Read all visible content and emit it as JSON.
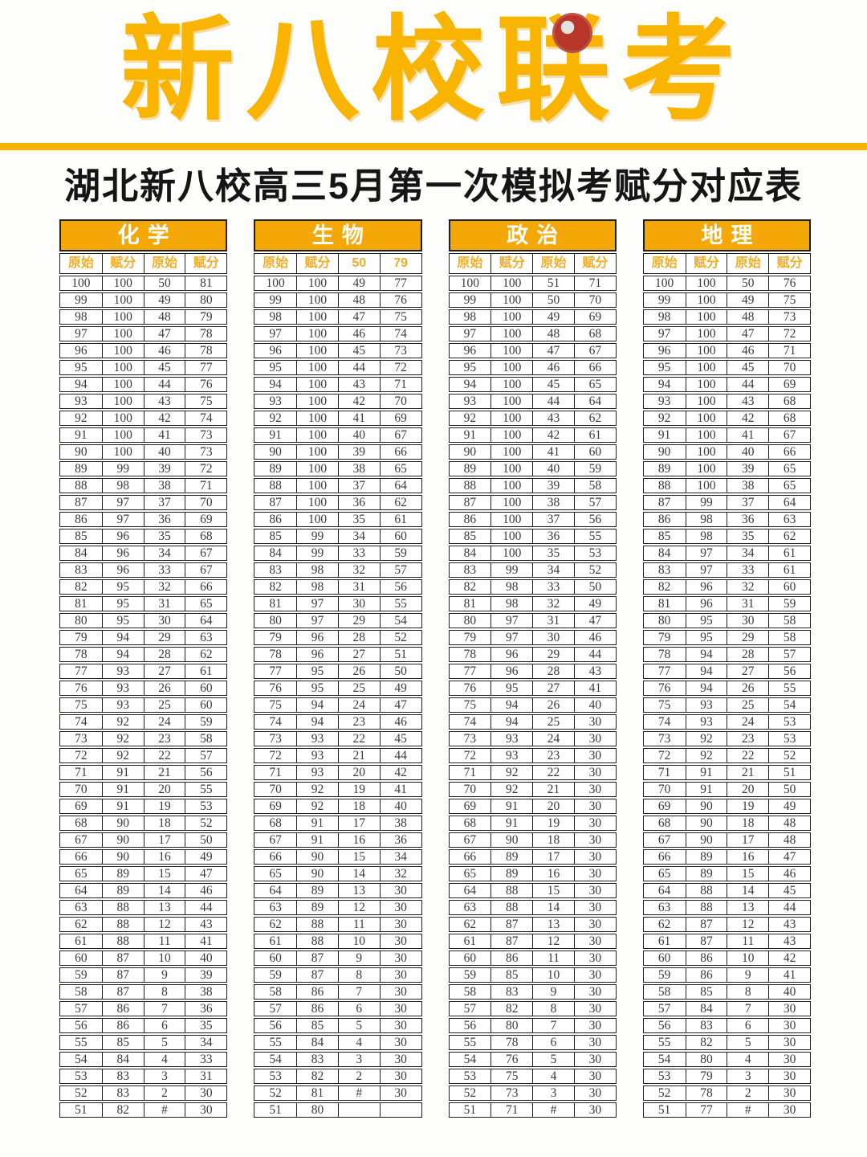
{
  "page": {
    "title": "新八校联考",
    "subtitle": "湖北新八校高三5月第一次模拟考赋分对应表",
    "seal_icon": "red-seal"
  },
  "colors": {
    "title_yellow": "#f8b400",
    "table_header_bg": "#f3a808",
    "subheader_text": "#f0ad2a",
    "border": "#1f1f1f",
    "cell_text": "#3b3b3b"
  },
  "tables": [
    {
      "name": "化学",
      "headers": [
        "原始",
        "赋分",
        "原始",
        "赋分"
      ],
      "rows": [
        [
          "100",
          "100",
          "50",
          "81"
        ],
        [
          "99",
          "100",
          "49",
          "80"
        ],
        [
          "98",
          "100",
          "48",
          "79"
        ],
        [
          "97",
          "100",
          "47",
          "78"
        ],
        [
          "96",
          "100",
          "46",
          "78"
        ],
        [
          "95",
          "100",
          "45",
          "77"
        ],
        [
          "94",
          "100",
          "44",
          "76"
        ],
        [
          "93",
          "100",
          "43",
          "75"
        ],
        [
          "92",
          "100",
          "42",
          "74"
        ],
        [
          "91",
          "100",
          "41",
          "73"
        ],
        [
          "90",
          "100",
          "40",
          "73"
        ],
        [
          "89",
          "99",
          "39",
          "72"
        ],
        [
          "88",
          "98",
          "38",
          "71"
        ],
        [
          "87",
          "97",
          "37",
          "70"
        ],
        [
          "86",
          "97",
          "36",
          "69"
        ],
        [
          "85",
          "96",
          "35",
          "68"
        ],
        [
          "84",
          "96",
          "34",
          "67"
        ],
        [
          "83",
          "96",
          "33",
          "67"
        ],
        [
          "82",
          "95",
          "32",
          "66"
        ],
        [
          "81",
          "95",
          "31",
          "65"
        ],
        [
          "80",
          "95",
          "30",
          "64"
        ],
        [
          "79",
          "94",
          "29",
          "63"
        ],
        [
          "78",
          "94",
          "28",
          "62"
        ],
        [
          "77",
          "93",
          "27",
          "61"
        ],
        [
          "76",
          "93",
          "26",
          "60"
        ],
        [
          "75",
          "93",
          "25",
          "60"
        ],
        [
          "74",
          "92",
          "24",
          "59"
        ],
        [
          "73",
          "92",
          "23",
          "58"
        ],
        [
          "72",
          "92",
          "22",
          "57"
        ],
        [
          "71",
          "91",
          "21",
          "56"
        ],
        [
          "70",
          "91",
          "20",
          "55"
        ],
        [
          "69",
          "91",
          "19",
          "53"
        ],
        [
          "68",
          "90",
          "18",
          "52"
        ],
        [
          "67",
          "90",
          "17",
          "50"
        ],
        [
          "66",
          "90",
          "16",
          "49"
        ],
        [
          "65",
          "89",
          "15",
          "47"
        ],
        [
          "64",
          "89",
          "14",
          "46"
        ],
        [
          "63",
          "88",
          "13",
          "44"
        ],
        [
          "62",
          "88",
          "12",
          "43"
        ],
        [
          "61",
          "88",
          "11",
          "41"
        ],
        [
          "60",
          "87",
          "10",
          "40"
        ],
        [
          "59",
          "87",
          "9",
          "39"
        ],
        [
          "58",
          "87",
          "8",
          "38"
        ],
        [
          "57",
          "86",
          "7",
          "36"
        ],
        [
          "56",
          "86",
          "6",
          "35"
        ],
        [
          "55",
          "85",
          "5",
          "34"
        ],
        [
          "54",
          "84",
          "4",
          "33"
        ],
        [
          "53",
          "83",
          "3",
          "31"
        ],
        [
          "52",
          "83",
          "2",
          "30"
        ],
        [
          "51",
          "82",
          "#",
          "30"
        ]
      ]
    },
    {
      "name": "生物",
      "headers": [
        "原始",
        "赋分",
        "50",
        "79"
      ],
      "rows": [
        [
          "100",
          "100",
          "49",
          "77"
        ],
        [
          "99",
          "100",
          "48",
          "76"
        ],
        [
          "98",
          "100",
          "47",
          "75"
        ],
        [
          "97",
          "100",
          "46",
          "74"
        ],
        [
          "96",
          "100",
          "45",
          "73"
        ],
        [
          "95",
          "100",
          "44",
          "72"
        ],
        [
          "94",
          "100",
          "43",
          "71"
        ],
        [
          "93",
          "100",
          "42",
          "70"
        ],
        [
          "92",
          "100",
          "41",
          "69"
        ],
        [
          "91",
          "100",
          "40",
          "67"
        ],
        [
          "90",
          "100",
          "39",
          "66"
        ],
        [
          "89",
          "100",
          "38",
          "65"
        ],
        [
          "88",
          "100",
          "37",
          "64"
        ],
        [
          "87",
          "100",
          "36",
          "62"
        ],
        [
          "86",
          "100",
          "35",
          "61"
        ],
        [
          "85",
          "99",
          "34",
          "60"
        ],
        [
          "84",
          "99",
          "33",
          "59"
        ],
        [
          "83",
          "98",
          "32",
          "57"
        ],
        [
          "82",
          "98",
          "31",
          "56"
        ],
        [
          "81",
          "97",
          "30",
          "55"
        ],
        [
          "80",
          "97",
          "29",
          "54"
        ],
        [
          "79",
          "96",
          "28",
          "52"
        ],
        [
          "78",
          "96",
          "27",
          "51"
        ],
        [
          "77",
          "95",
          "26",
          "50"
        ],
        [
          "76",
          "95",
          "25",
          "49"
        ],
        [
          "75",
          "94",
          "24",
          "47"
        ],
        [
          "74",
          "94",
          "23",
          "46"
        ],
        [
          "73",
          "93",
          "22",
          "45"
        ],
        [
          "72",
          "93",
          "21",
          "44"
        ],
        [
          "71",
          "93",
          "20",
          "42"
        ],
        [
          "70",
          "92",
          "19",
          "41"
        ],
        [
          "69",
          "92",
          "18",
          "40"
        ],
        [
          "68",
          "91",
          "17",
          "38"
        ],
        [
          "67",
          "91",
          "16",
          "36"
        ],
        [
          "66",
          "90",
          "15",
          "34"
        ],
        [
          "65",
          "90",
          "14",
          "32"
        ],
        [
          "64",
          "89",
          "13",
          "30"
        ],
        [
          "63",
          "89",
          "12",
          "30"
        ],
        [
          "62",
          "88",
          "11",
          "30"
        ],
        [
          "61",
          "88",
          "10",
          "30"
        ],
        [
          "60",
          "87",
          "9",
          "30"
        ],
        [
          "59",
          "87",
          "8",
          "30"
        ],
        [
          "58",
          "86",
          "7",
          "30"
        ],
        [
          "57",
          "86",
          "6",
          "30"
        ],
        [
          "56",
          "85",
          "5",
          "30"
        ],
        [
          "55",
          "84",
          "4",
          "30"
        ],
        [
          "54",
          "83",
          "3",
          "30"
        ],
        [
          "53",
          "82",
          "2",
          "30"
        ],
        [
          "52",
          "81",
          "#",
          "30"
        ],
        [
          "51",
          "80",
          "",
          ""
        ]
      ]
    },
    {
      "name": "政治",
      "headers": [
        "原始",
        "赋分",
        "原始",
        "赋分"
      ],
      "rows": [
        [
          "100",
          "100",
          "51",
          "71"
        ],
        [
          "99",
          "100",
          "50",
          "70"
        ],
        [
          "98",
          "100",
          "49",
          "69"
        ],
        [
          "97",
          "100",
          "48",
          "68"
        ],
        [
          "96",
          "100",
          "47",
          "67"
        ],
        [
          "95",
          "100",
          "46",
          "66"
        ],
        [
          "94",
          "100",
          "45",
          "65"
        ],
        [
          "93",
          "100",
          "44",
          "64"
        ],
        [
          "92",
          "100",
          "43",
          "62"
        ],
        [
          "91",
          "100",
          "42",
          "61"
        ],
        [
          "90",
          "100",
          "41",
          "60"
        ],
        [
          "89",
          "100",
          "40",
          "59"
        ],
        [
          "88",
          "100",
          "39",
          "58"
        ],
        [
          "87",
          "100",
          "38",
          "57"
        ],
        [
          "86",
          "100",
          "37",
          "56"
        ],
        [
          "85",
          "100",
          "36",
          "55"
        ],
        [
          "84",
          "100",
          "35",
          "53"
        ],
        [
          "83",
          "99",
          "34",
          "52"
        ],
        [
          "82",
          "98",
          "33",
          "50"
        ],
        [
          "81",
          "98",
          "32",
          "49"
        ],
        [
          "80",
          "97",
          "31",
          "47"
        ],
        [
          "79",
          "97",
          "30",
          "46"
        ],
        [
          "78",
          "96",
          "29",
          "44"
        ],
        [
          "77",
          "96",
          "28",
          "43"
        ],
        [
          "76",
          "95",
          "27",
          "41"
        ],
        [
          "75",
          "94",
          "26",
          "40"
        ],
        [
          "74",
          "94",
          "25",
          "30"
        ],
        [
          "73",
          "93",
          "24",
          "30"
        ],
        [
          "72",
          "93",
          "23",
          "30"
        ],
        [
          "71",
          "92",
          "22",
          "30"
        ],
        [
          "70",
          "92",
          "21",
          "30"
        ],
        [
          "69",
          "91",
          "20",
          "30"
        ],
        [
          "68",
          "91",
          "19",
          "30"
        ],
        [
          "67",
          "90",
          "18",
          "30"
        ],
        [
          "66",
          "89",
          "17",
          "30"
        ],
        [
          "65",
          "89",
          "16",
          "30"
        ],
        [
          "64",
          "88",
          "15",
          "30"
        ],
        [
          "63",
          "88",
          "14",
          "30"
        ],
        [
          "62",
          "87",
          "13",
          "30"
        ],
        [
          "61",
          "87",
          "12",
          "30"
        ],
        [
          "60",
          "86",
          "11",
          "30"
        ],
        [
          "59",
          "85",
          "10",
          "30"
        ],
        [
          "58",
          "83",
          "9",
          "30"
        ],
        [
          "57",
          "82",
          "8",
          "30"
        ],
        [
          "56",
          "80",
          "7",
          "30"
        ],
        [
          "55",
          "78",
          "6",
          "30"
        ],
        [
          "54",
          "76",
          "5",
          "30"
        ],
        [
          "53",
          "75",
          "4",
          "30"
        ],
        [
          "52",
          "73",
          "3",
          "30"
        ],
        [
          "51",
          "71",
          "#",
          "30"
        ]
      ]
    },
    {
      "name": "地理",
      "headers": [
        "原始",
        "赋分",
        "原始",
        "赋分"
      ],
      "rows": [
        [
          "100",
          "100",
          "50",
          "76"
        ],
        [
          "99",
          "100",
          "49",
          "75"
        ],
        [
          "98",
          "100",
          "48",
          "73"
        ],
        [
          "97",
          "100",
          "47",
          "72"
        ],
        [
          "96",
          "100",
          "46",
          "71"
        ],
        [
          "95",
          "100",
          "45",
          "70"
        ],
        [
          "94",
          "100",
          "44",
          "69"
        ],
        [
          "93",
          "100",
          "43",
          "68"
        ],
        [
          "92",
          "100",
          "42",
          "68"
        ],
        [
          "91",
          "100",
          "41",
          "67"
        ],
        [
          "90",
          "100",
          "40",
          "66"
        ],
        [
          "89",
          "100",
          "39",
          "65"
        ],
        [
          "88",
          "100",
          "38",
          "65"
        ],
        [
          "87",
          "99",
          "37",
          "64"
        ],
        [
          "86",
          "98",
          "36",
          "63"
        ],
        [
          "85",
          "98",
          "35",
          "62"
        ],
        [
          "84",
          "97",
          "34",
          "61"
        ],
        [
          "83",
          "97",
          "33",
          "61"
        ],
        [
          "82",
          "96",
          "32",
          "60"
        ],
        [
          "81",
          "96",
          "31",
          "59"
        ],
        [
          "80",
          "95",
          "30",
          "58"
        ],
        [
          "79",
          "95",
          "29",
          "58"
        ],
        [
          "78",
          "94",
          "28",
          "57"
        ],
        [
          "77",
          "94",
          "27",
          "56"
        ],
        [
          "76",
          "94",
          "26",
          "55"
        ],
        [
          "75",
          "93",
          "25",
          "54"
        ],
        [
          "74",
          "93",
          "24",
          "53"
        ],
        [
          "73",
          "92",
          "23",
          "53"
        ],
        [
          "72",
          "92",
          "22",
          "52"
        ],
        [
          "71",
          "91",
          "21",
          "51"
        ],
        [
          "70",
          "91",
          "20",
          "50"
        ],
        [
          "69",
          "90",
          "19",
          "49"
        ],
        [
          "68",
          "90",
          "18",
          "48"
        ],
        [
          "67",
          "90",
          "17",
          "48"
        ],
        [
          "66",
          "89",
          "16",
          "47"
        ],
        [
          "65",
          "89",
          "15",
          "46"
        ],
        [
          "64",
          "88",
          "14",
          "45"
        ],
        [
          "63",
          "88",
          "13",
          "44"
        ],
        [
          "62",
          "87",
          "12",
          "43"
        ],
        [
          "61",
          "87",
          "11",
          "43"
        ],
        [
          "60",
          "86",
          "10",
          "42"
        ],
        [
          "59",
          "86",
          "9",
          "41"
        ],
        [
          "58",
          "85",
          "8",
          "40"
        ],
        [
          "57",
          "84",
          "7",
          "30"
        ],
        [
          "56",
          "83",
          "6",
          "30"
        ],
        [
          "55",
          "82",
          "5",
          "30"
        ],
        [
          "54",
          "80",
          "4",
          "30"
        ],
        [
          "53",
          "79",
          "3",
          "30"
        ],
        [
          "52",
          "78",
          "2",
          "30"
        ],
        [
          "51",
          "77",
          "#",
          "30"
        ]
      ]
    }
  ]
}
